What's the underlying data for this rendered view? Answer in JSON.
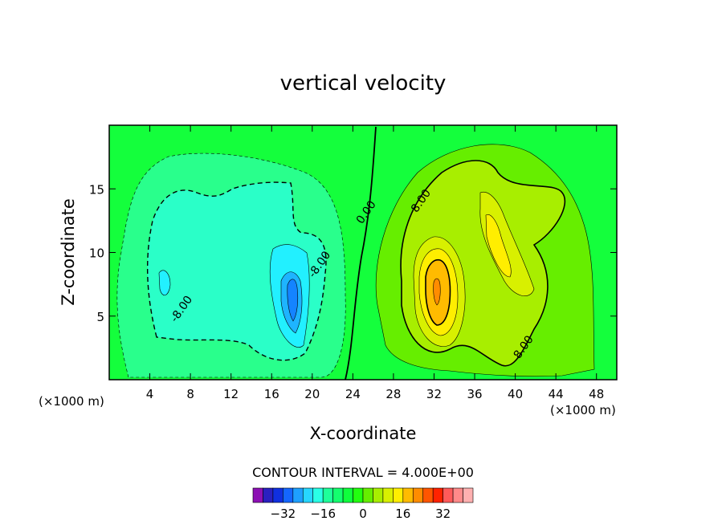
{
  "chart_data": {
    "type": "contour",
    "title": "vertical velocity",
    "xlabel": "X-coordinate",
    "ylabel": "Z-coordinate",
    "x_unit": "(×1000 m)",
    "y_unit": "(×1000 m)",
    "xlim": [
      0,
      50
    ],
    "ylim": [
      0,
      20
    ],
    "x_ticks": [
      4,
      8,
      12,
      16,
      20,
      24,
      28,
      32,
      36,
      40,
      44,
      48
    ],
    "y_ticks": [
      5,
      10,
      15
    ],
    "contour_interval_text": "CONTOUR INTERVAL = 4.000E+00",
    "contour_labels": [
      {
        "text": "0.00",
        "x": 25.6,
        "y": 13.0
      },
      {
        "text": "8.00",
        "x": 31.0,
        "y": 13.9
      },
      {
        "text": "-8.00",
        "x": 21.0,
        "y": 8.9
      },
      {
        "text": "-8.00",
        "x": 7.4,
        "y": 5.4
      },
      {
        "text": "8.00",
        "x": 41.1,
        "y": 2.4
      }
    ],
    "features": [
      {
        "name": "downdraft-broad",
        "sign": "negative",
        "x": [
          1.5,
          23.5
        ],
        "z": [
          0.5,
          18.0
        ],
        "min_value": -12
      },
      {
        "name": "downdraft-core",
        "sign": "negative",
        "x": [
          16.5,
          19.5
        ],
        "z": [
          3.0,
          10.0
        ],
        "min_value": -24
      },
      {
        "name": "updraft-broad",
        "sign": "positive",
        "x": [
          26.0,
          48.5
        ],
        "z": [
          0.5,
          17.5
        ],
        "max_value": 12
      },
      {
        "name": "updraft-core",
        "sign": "positive",
        "x": [
          30.5,
          34.0
        ],
        "z": [
          4.5,
          9.5
        ],
        "max_value": 24
      }
    ],
    "colorbar": {
      "ticks": [
        -32,
        -16,
        0,
        16,
        32
      ],
      "tick_labels": [
        "−32",
        "−16",
        "0",
        "16",
        "32"
      ],
      "colors": [
        "#8c10b4",
        "#2a20c0",
        "#1030e0",
        "#1466ff",
        "#1ea0ff",
        "#27d6ff",
        "#2affe6",
        "#1eff9a",
        "#14ff6e",
        "#0fff3c",
        "#22ff10",
        "#66ee00",
        "#a8ee00",
        "#d8f000",
        "#ffee00",
        "#ffbb00",
        "#ff8c00",
        "#ff5500",
        "#ff2200",
        "#ff5a5a",
        "#ff8a8a",
        "#ffb0b0"
      ]
    }
  }
}
